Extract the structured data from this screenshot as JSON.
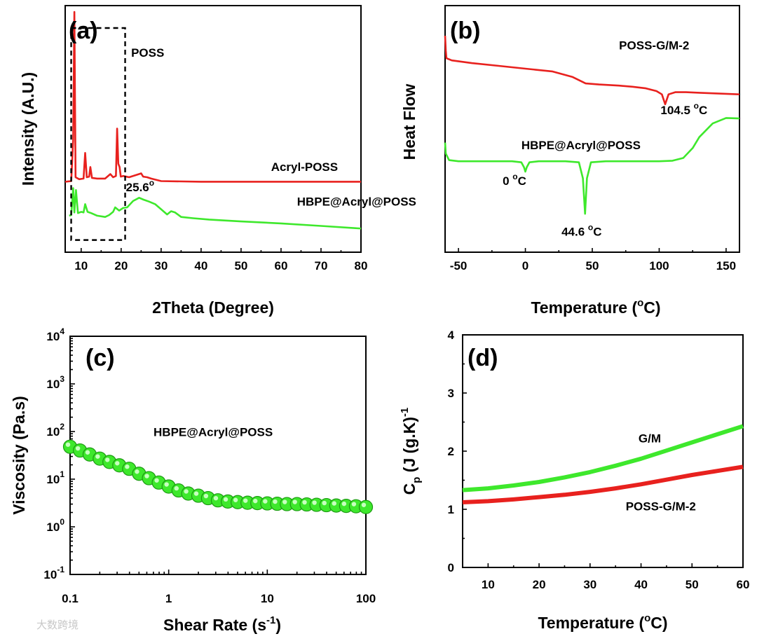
{
  "chart_data": [
    {
      "id": "a",
      "type": "line",
      "panel_label": "(a)",
      "xlabel": "2Theta (Degree)",
      "ylabel": "Intensity (A.U.)",
      "xlim": [
        6,
        80
      ],
      "x_ticks": [
        10,
        20,
        30,
        40,
        50,
        60,
        70,
        80
      ],
      "y_ticks": false,
      "series": [
        {
          "name": "Acryl-POSS",
          "color": "#e8211e",
          "label": "Acryl-POSS",
          "x": [
            6,
            7.5,
            8.0,
            8.3,
            8.6,
            9.5,
            10.6,
            11.0,
            11.4,
            12.0,
            12.3,
            12.7,
            14,
            16,
            17.3,
            18,
            18.7,
            19.0,
            19.3,
            19.6,
            19.9,
            20.5,
            22,
            24,
            25,
            25.5,
            26.5,
            27.5,
            30,
            40,
            50,
            60,
            70,
            80
          ],
          "y": [
            0.55,
            0.56,
            1.2,
            3.2,
            0.62,
            0.59,
            0.6,
            1.0,
            0.62,
            0.63,
            0.78,
            0.61,
            0.6,
            0.6,
            0.67,
            0.62,
            0.64,
            1.38,
            0.83,
            0.78,
            0.63,
            0.64,
            0.62,
            0.66,
            0.68,
            0.63,
            0.62,
            0.6,
            0.56,
            0.55,
            0.55,
            0.55,
            0.55,
            0.55
          ]
        },
        {
          "name": "HBPE@Acryl@POSS",
          "color": "#3ee82c",
          "label": "HBPE@Acryl@POSS",
          "x": [
            7,
            7.5,
            8.0,
            8.3,
            8.7,
            9.2,
            10,
            10.6,
            11.0,
            11.6,
            12.5,
            14,
            16,
            17,
            18,
            18.5,
            19.5,
            20.5,
            21.5,
            23,
            24.5,
            25.6,
            27,
            28.5,
            30,
            31.5,
            32.5,
            33.5,
            35,
            38,
            42,
            50,
            60,
            70,
            80
          ],
          "y": [
            0.02,
            0.03,
            0.45,
            0.07,
            0.42,
            0.06,
            0.08,
            0.07,
            0.2,
            0.08,
            0.06,
            0.02,
            0.0,
            0.03,
            0.08,
            0.15,
            0.1,
            0.14,
            0.15,
            0.25,
            0.3,
            0.27,
            0.24,
            0.2,
            0.12,
            0.04,
            0.09,
            0.07,
            0.0,
            -0.02,
            -0.04,
            -0.07,
            -0.1,
            -0.14,
            -0.18
          ]
        }
      ],
      "annotations": [
        {
          "text": "POSS",
          "x": 22.5,
          "y": 2.5
        },
        {
          "text": "Acryl-POSS",
          "x": 57.5,
          "y": 0.72
        },
        {
          "text": "25.6",
          "superscript": "o",
          "x": 21.2,
          "y": 0.4
        },
        {
          "text": "HBPE@Acryl@POSS",
          "x": 64,
          "y": 0.18
        }
      ],
      "highlight_box": {
        "x": [
          7.5,
          21
        ],
        "y": [
          -0.36,
          2.95
        ],
        "style": "dashed"
      }
    },
    {
      "id": "b",
      "type": "line",
      "panel_label": "(b)",
      "xlabel": "Temperature (",
      "xlabel_degree": "o",
      "xlabel_tail": "C)",
      "ylabel": "Heat Flow",
      "xlim": [
        -60,
        160
      ],
      "x_ticks": [
        -50,
        0,
        50,
        100,
        150
      ],
      "y_ticks": false,
      "series": [
        {
          "name": "POSS-G/M-2",
          "color": "#e8211e",
          "label": "POSS-G/M-2",
          "x": [
            -60,
            -59.5,
            -59,
            -55,
            -40,
            -20,
            0,
            20,
            35,
            45,
            55,
            70,
            80,
            90,
            98,
            102,
            104.5,
            107,
            112,
            120,
            130,
            140,
            150,
            160
          ],
          "y": [
            1.45,
            1.18,
            1.04,
            1.0,
            0.95,
            0.9,
            0.85,
            0.8,
            0.7,
            0.58,
            0.56,
            0.54,
            0.52,
            0.49,
            0.44,
            0.38,
            0.2,
            0.38,
            0.42,
            0.42,
            0.41,
            0.4,
            0.39,
            0.38
          ]
        },
        {
          "name": "HBPE@Acryl@POSS",
          "color": "#3ee82c",
          "label": "HBPE@Acryl@POSS",
          "x": [
            -60,
            -59.5,
            -57,
            -50,
            -30,
            -10,
            -3,
            -1,
            0,
            1,
            3,
            10,
            30,
            40,
            43,
            44.6,
            46,
            49,
            60,
            80,
            100,
            110,
            118,
            125,
            130,
            140,
            150,
            160
          ],
          "y": [
            -0.5,
            -0.7,
            -0.82,
            -0.84,
            -0.84,
            -0.84,
            -0.86,
            -0.95,
            -1.03,
            -0.95,
            -0.86,
            -0.84,
            -0.84,
            -0.86,
            -1.15,
            -1.8,
            -1.15,
            -0.86,
            -0.84,
            -0.84,
            -0.84,
            -0.83,
            -0.78,
            -0.6,
            -0.4,
            -0.15,
            -0.05,
            -0.06
          ]
        }
      ],
      "annotations": [
        {
          "text": "POSS-G/M-2",
          "x": 70,
          "y": 1.2
        },
        {
          "text": "104.5",
          "superscript": "o",
          "tail": "C",
          "x": 101,
          "y": 0.02
        },
        {
          "text": "HBPE@Acryl@POSS",
          "x": -3,
          "y": -0.62
        },
        {
          "text": "0",
          "superscript": "o",
          "tail": "C",
          "x": -17,
          "y": -1.27
        },
        {
          "text": "44.6",
          "superscript": "o",
          "tail": "C",
          "x": 27,
          "y": -2.2
        }
      ]
    },
    {
      "id": "c",
      "type": "scatter",
      "panel_label": "(c)",
      "xlabel": "Shear Rate (s",
      "xlabel_exp": "-1",
      "xlabel_tail": ")",
      "ylabel": "Viscosity (Pa.s)",
      "xscale": "log",
      "yscale": "log",
      "xlim": [
        0.1,
        100
      ],
      "ylim": [
        0.1,
        10000
      ],
      "x_ticks": [
        0.1,
        1,
        10,
        100
      ],
      "x_tick_labels": [
        "0.1",
        "1",
        "10",
        "100"
      ],
      "y_ticks": [
        0.1,
        1,
        10,
        100,
        1000,
        10000
      ],
      "y_tick_mantissa": "10",
      "y_tick_exponents": [
        "-1",
        "0",
        "1",
        "2",
        "3",
        "4"
      ],
      "series": [
        {
          "name": "HBPE@Acryl@POSS",
          "color": "#3ee82c",
          "label": "HBPE@Acryl@POSS",
          "x": [
            0.1,
            0.126,
            0.158,
            0.2,
            0.251,
            0.316,
            0.398,
            0.501,
            0.631,
            0.794,
            1.0,
            1.26,
            1.58,
            2.0,
            2.51,
            3.16,
            3.98,
            5.01,
            6.31,
            7.94,
            10,
            12.6,
            15.8,
            20,
            25.1,
            31.6,
            39.8,
            50.1,
            63.1,
            79.4,
            100
          ],
          "y": [
            48,
            40,
            33,
            27,
            23,
            19.5,
            16.5,
            13,
            10.5,
            8.5,
            7,
            5.8,
            5.0,
            4.5,
            4.0,
            3.6,
            3.4,
            3.3,
            3.2,
            3.15,
            3.1,
            3.05,
            3.0,
            3.0,
            2.95,
            2.9,
            2.85,
            2.8,
            2.75,
            2.7,
            2.6
          ]
        }
      ],
      "annotations": [
        {
          "text": "HBPE@Acryl@POSS",
          "x": 0.8,
          "y": 80
        }
      ]
    },
    {
      "id": "d",
      "type": "line",
      "panel_label": "(d)",
      "xlabel": "Temperature (",
      "xlabel_degree": "o",
      "xlabel_tail": "C)",
      "ylabel": "C",
      "ylabel_sub": "p",
      "ylabel_tail": " (J (g.K)",
      "ylabel_exp": "-1",
      "xlim": [
        5,
        60
      ],
      "ylim": [
        0,
        4
      ],
      "x_ticks": [
        10,
        20,
        30,
        40,
        50,
        60
      ],
      "y_ticks": [
        0,
        1,
        2,
        3,
        4
      ],
      "series": [
        {
          "name": "G/M",
          "color": "#3ee82c",
          "label": "G/M",
          "x": [
            5,
            10,
            15,
            20,
            25,
            30,
            35,
            40,
            45,
            50,
            55,
            60
          ],
          "y": [
            1.33,
            1.36,
            1.41,
            1.47,
            1.55,
            1.64,
            1.75,
            1.87,
            2.01,
            2.15,
            2.29,
            2.43
          ]
        },
        {
          "name": "POSS-G/M-2",
          "color": "#e8211e",
          "label": "POSS-G/M-2",
          "x": [
            5,
            10,
            15,
            20,
            25,
            30,
            35,
            40,
            45,
            50,
            55,
            60
          ],
          "y": [
            1.12,
            1.14,
            1.17,
            1.21,
            1.25,
            1.3,
            1.36,
            1.43,
            1.51,
            1.59,
            1.66,
            1.73
          ]
        }
      ],
      "annotations": [
        {
          "text": "G/M",
          "x": 39.5,
          "y": 2.15
        },
        {
          "text": "POSS-G/M-2",
          "x": 37,
          "y": 0.98
        }
      ]
    }
  ],
  "watermark": "大数跨境"
}
